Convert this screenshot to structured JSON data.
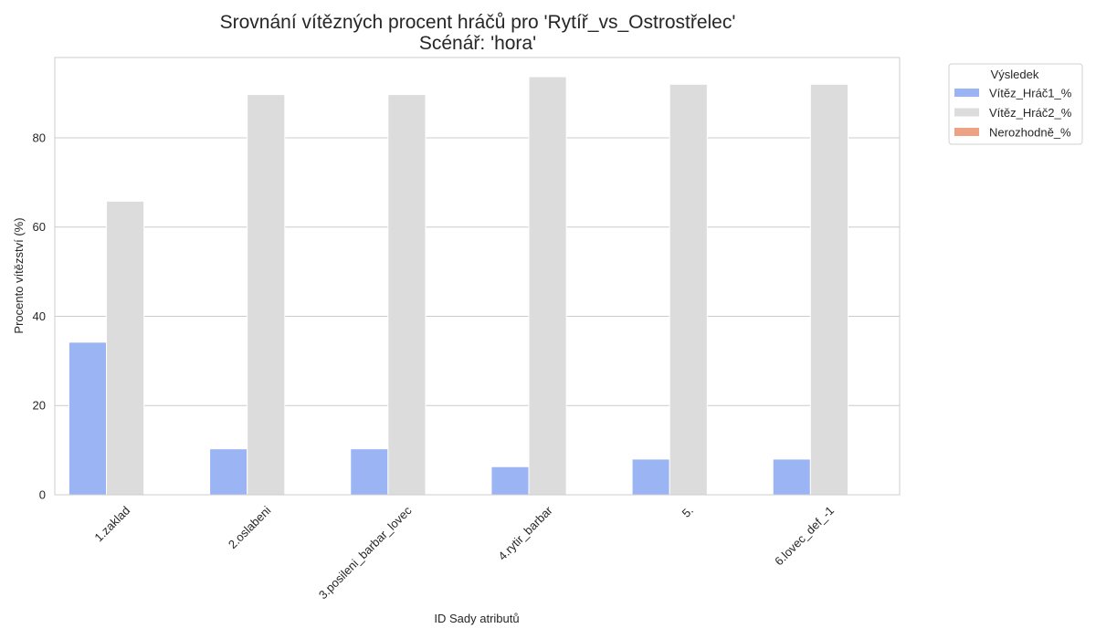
{
  "chart_data": {
    "type": "bar",
    "title": "Srovnání vítězných procent hráčů pro 'Rytíř_vs_Ostrostřelec'",
    "subtitle": "Scénář: 'hora'",
    "xlabel": "ID Sady atributů",
    "ylabel": "Procento vítězství (%)",
    "categories": [
      "1.zaklad",
      "2.oslabeni",
      "3.posileni_barbar_lovec",
      "4.rytir_barbar",
      "5.",
      "6.lovec_def_-1"
    ],
    "series": [
      {
        "name": "Vítěz_Hráč1_%",
        "color": "#9bb5f4",
        "values": [
          34.2,
          10.3,
          10.3,
          6.3,
          8.0,
          8.0
        ]
      },
      {
        "name": "Vítěz_Hráč2_%",
        "color": "#dcdcdc",
        "values": [
          65.8,
          89.7,
          89.7,
          93.7,
          92.0,
          92.0
        ]
      },
      {
        "name": "Nerozhodně_%",
        "color": "#eea284",
        "values": [
          0,
          0,
          0,
          0,
          0,
          0
        ]
      }
    ],
    "ylim": [
      0,
      98
    ],
    "yticks": [
      0,
      20,
      40,
      60,
      80
    ],
    "grid": true,
    "legend": {
      "title": "Výsledek",
      "placement": "outside-top-right"
    }
  }
}
